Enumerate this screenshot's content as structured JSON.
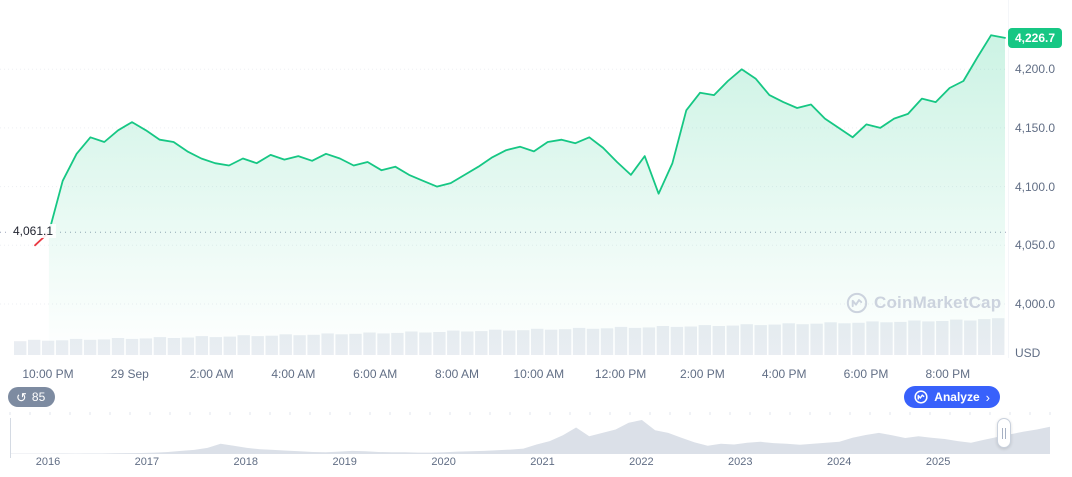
{
  "chart": {
    "current_price_badge": "4,226.7",
    "open_price_label": "4,061.1",
    "y_axis_ticks": [
      "4,200.0",
      "4,150.0",
      "4,100.0",
      "4,050.0",
      "4,000.0"
    ],
    "y_axis_unit": "USD",
    "x_axis_labels": [
      "10:00 PM",
      "29 Sep",
      "2:00 AM",
      "4:00 AM",
      "6:00 AM",
      "8:00 AM",
      "10:00 AM",
      "12:00 PM",
      "2:00 PM",
      "4:00 PM",
      "6:00 PM",
      "8:00 PM"
    ],
    "watermark": "CoinMarketCap",
    "colors": {
      "up": "#16c784",
      "down": "#ea3943",
      "accent_blue": "#3861fb",
      "volume": "#e9edf2",
      "timeline_fill": "#dbe0e8",
      "badge_gray": "#7d8ba1",
      "axis_text": "#616e85",
      "open_line": "#9aa4b8",
      "grid_line": "#edeff3"
    }
  },
  "controls": {
    "annotation_count": "85",
    "analyze_label": "Analyze"
  },
  "icons": {
    "history": "↺",
    "chevron_right": "›"
  },
  "chart_data": [
    {
      "type": "line",
      "series": [
        {
          "name": "Price (USD)",
          "values": [
            4050,
            4061,
            4105,
            4128,
            4142,
            4138,
            4148,
            4155,
            4148,
            4140,
            4138,
            4130,
            4124,
            4120,
            4118,
            4124,
            4120,
            4127,
            4123,
            4126,
            4122,
            4128,
            4124,
            4118,
            4121,
            4114,
            4117,
            4110,
            4105,
            4100,
            4103,
            4110,
            4117,
            4125,
            4131,
            4134,
            4130,
            4138,
            4140,
            4137,
            4142,
            4133,
            4121,
            4110,
            4126,
            4094,
            4120,
            4165,
            4180,
            4178,
            4190,
            4200,
            4192,
            4178,
            4172,
            4167,
            4170,
            4158,
            4150,
            4142,
            4153,
            4150,
            4158,
            4162,
            4175,
            4172,
            4184,
            4190,
            4210,
            4229,
            4226.7
          ]
        }
      ],
      "volume_normalized": [
        0.3,
        0.33,
        0.31,
        0.32,
        0.35,
        0.33,
        0.34,
        0.37,
        0.35,
        0.36,
        0.39,
        0.37,
        0.38,
        0.41,
        0.39,
        0.4,
        0.43,
        0.41,
        0.42,
        0.45,
        0.43,
        0.44,
        0.47,
        0.45,
        0.46,
        0.49,
        0.47,
        0.48,
        0.51,
        0.49,
        0.5,
        0.53,
        0.51,
        0.52,
        0.55,
        0.53,
        0.54,
        0.57,
        0.55,
        0.56,
        0.59,
        0.57,
        0.58,
        0.61,
        0.59,
        0.6,
        0.63,
        0.61,
        0.62,
        0.65,
        0.63,
        0.64,
        0.67,
        0.65,
        0.66,
        0.69,
        0.67,
        0.68,
        0.71,
        0.69,
        0.7,
        0.73,
        0.71,
        0.72,
        0.75,
        0.73,
        0.74,
        0.77,
        0.75,
        0.78,
        0.8
      ],
      "open_price": 4061.1,
      "current_price": 4226.7,
      "red_segment_end_index": 1,
      "ylim": [
        3954,
        4259
      ],
      "y_ticks": [
        4200,
        4150,
        4100,
        4050,
        4000
      ],
      "x_tick_labels": [
        "10:00 PM",
        "29 Sep",
        "2:00 AM",
        "4:00 AM",
        "6:00 AM",
        "8:00 AM",
        "10:00 AM",
        "12:00 PM",
        "2:00 PM",
        "4:00 PM",
        "6:00 PM",
        "8:00 PM"
      ],
      "grid": "dotted-horizontal",
      "legend": "none"
    },
    {
      "type": "area",
      "x_tick_labels": [
        "2016",
        "2017",
        "2018",
        "2019",
        "2020",
        "2021",
        "2022",
        "2023",
        "2024",
        "2025"
      ],
      "values_normalized": [
        0.012,
        0.012,
        0.013,
        0.012,
        0.014,
        0.013,
        0.015,
        0.016,
        0.02,
        0.025,
        0.03,
        0.04,
        0.06,
        0.09,
        0.12,
        0.18,
        0.3,
        0.24,
        0.18,
        0.14,
        0.12,
        0.1,
        0.08,
        0.06,
        0.05,
        0.07,
        0.09,
        0.08,
        0.06,
        0.05,
        0.05,
        0.04,
        0.04,
        0.05,
        0.07,
        0.08,
        0.09,
        0.11,
        0.13,
        0.16,
        0.28,
        0.38,
        0.55,
        0.78,
        0.52,
        0.62,
        0.72,
        0.92,
        1.0,
        0.7,
        0.62,
        0.48,
        0.34,
        0.24,
        0.3,
        0.28,
        0.33,
        0.36,
        0.32,
        0.3,
        0.27,
        0.3,
        0.33,
        0.36,
        0.48,
        0.56,
        0.62,
        0.55,
        0.47,
        0.52,
        0.48,
        0.44,
        0.38,
        0.33,
        0.42,
        0.5,
        0.58,
        0.66,
        0.72,
        0.8
      ]
    }
  ]
}
